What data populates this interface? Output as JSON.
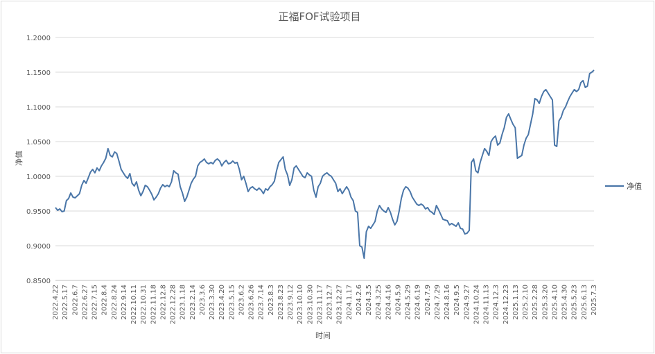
{
  "chart_data": {
    "type": "line",
    "title": "正福FOF试验项目",
    "xlabel": "时间",
    "ylabel": "净值",
    "ylim": [
      0.85,
      1.2
    ],
    "yticks": [
      "0.8500",
      "0.9000",
      "0.9500",
      "1.0000",
      "1.0500",
      "1.1000",
      "1.1500",
      "1.2000"
    ],
    "yvalues": [
      0.85,
      0.9,
      0.95,
      1.0,
      1.05,
      1.1,
      1.15,
      1.2
    ],
    "grid": "horizontal",
    "legend_position": "right",
    "color": "#4a76a8",
    "x_tick_labels": [
      "2022.4.22",
      "2022.5.17",
      "2022.6.7",
      "2022.6.27",
      "2022.7.15",
      "2022.8.4",
      "2022.8.24",
      "2022.9.14",
      "2022.10.11",
      "2022.10.31",
      "2022.11.18",
      "2022.12.8",
      "2022.12.28",
      "2023.1.18",
      "2023.2.14",
      "2023.3.6",
      "2023.3.30",
      "2023.4.20",
      "2023.5.15",
      "2023.6.2",
      "2023.6.26",
      "2023.7.14",
      "2023.8.3",
      "2023.8.23",
      "2023.9.12",
      "2023.10.10",
      "2023.10.30",
      "2023.11.17",
      "2023.12.7",
      "2023.12.27",
      "2024.1.17",
      "2024.2.6",
      "2024.3.5",
      "2024.3.25",
      "2024.4.16",
      "2024.5.9",
      "2024.5.29",
      "2024.6.19",
      "2024.7.9",
      "2024.7.29",
      "2024.8.16",
      "2024.9.5",
      "2024.9.27",
      "2024.10.24",
      "2024.11.13",
      "2024.12.3",
      "2024.12.23",
      "2025.1.13",
      "2025.2.10",
      "2025.2.28",
      "2025.3.20",
      "2025.4.10",
      "2025.4.30",
      "2025.5.23",
      "2025.6.13",
      "2025.7.3"
    ],
    "series": [
      {
        "name": "净值",
        "values": [
          0.955,
          0.951,
          0.953,
          0.949,
          0.95,
          0.965,
          0.968,
          0.976,
          0.97,
          0.969,
          0.972,
          0.975,
          0.987,
          0.994,
          0.99,
          0.998,
          1.006,
          1.01,
          1.005,
          1.012,
          1.008,
          1.015,
          1.02,
          1.026,
          1.04,
          1.03,
          1.028,
          1.035,
          1.033,
          1.022,
          1.01,
          1.005,
          1.0,
          0.997,
          1.004,
          0.99,
          0.986,
          0.992,
          0.98,
          0.972,
          0.978,
          0.987,
          0.985,
          0.98,
          0.974,
          0.966,
          0.97,
          0.975,
          0.983,
          0.988,
          0.985,
          0.987,
          0.985,
          0.992,
          1.008,
          1.005,
          1.003,
          0.985,
          0.976,
          0.964,
          0.97,
          0.98,
          0.99,
          0.996,
          1.0,
          1.015,
          1.02,
          1.022,
          1.025,
          1.02,
          1.018,
          1.02,
          1.018,
          1.023,
          1.025,
          1.022,
          1.015,
          1.02,
          1.023,
          1.018,
          1.019,
          1.022,
          1.019,
          1.02,
          1.01,
          0.995,
          1.0,
          0.99,
          0.978,
          0.983,
          0.985,
          0.982,
          0.98,
          0.983,
          0.98,
          0.975,
          0.982,
          0.98,
          0.985,
          0.988,
          0.993,
          1.008,
          1.02,
          1.024,
          1.028,
          1.01,
          1.002,
          0.987,
          0.995,
          1.012,
          1.015,
          1.01,
          1.005,
          1.0,
          0.998,
          1.005,
          1.002,
          1.0,
          0.98,
          0.97,
          0.985,
          0.99,
          1.0,
          1.003,
          1.005,
          1.002,
          1.0,
          0.995,
          0.99,
          0.978,
          0.982,
          0.975,
          0.98,
          0.985,
          0.98,
          0.97,
          0.965,
          0.95,
          0.948,
          0.9,
          0.898,
          0.882,
          0.92,
          0.928,
          0.925,
          0.93,
          0.935,
          0.95,
          0.958,
          0.953,
          0.95,
          0.948,
          0.955,
          0.948,
          0.938,
          0.93,
          0.935,
          0.95,
          0.968,
          0.98,
          0.985,
          0.983,
          0.978,
          0.97,
          0.965,
          0.96,
          0.958,
          0.96,
          0.958,
          0.953,
          0.955,
          0.95,
          0.948,
          0.945,
          0.958,
          0.952,
          0.945,
          0.938,
          0.937,
          0.936,
          0.93,
          0.932,
          0.93,
          0.928,
          0.933,
          0.925,
          0.924,
          0.917,
          0.918,
          0.922,
          1.02,
          1.025,
          1.008,
          1.005,
          1.02,
          1.03,
          1.04,
          1.036,
          1.03,
          1.05,
          1.055,
          1.058,
          1.045,
          1.048,
          1.06,
          1.07,
          1.085,
          1.09,
          1.082,
          1.075,
          1.07,
          1.026,
          1.028,
          1.03,
          1.045,
          1.055,
          1.06,
          1.075,
          1.09,
          1.112,
          1.11,
          1.105,
          1.115,
          1.122,
          1.125,
          1.12,
          1.115,
          1.11,
          1.045,
          1.043,
          1.08,
          1.085,
          1.095,
          1.1,
          1.108,
          1.115,
          1.12,
          1.125,
          1.122,
          1.125,
          1.135,
          1.138,
          1.128,
          1.13,
          1.148,
          1.15,
          1.153
        ]
      }
    ]
  }
}
